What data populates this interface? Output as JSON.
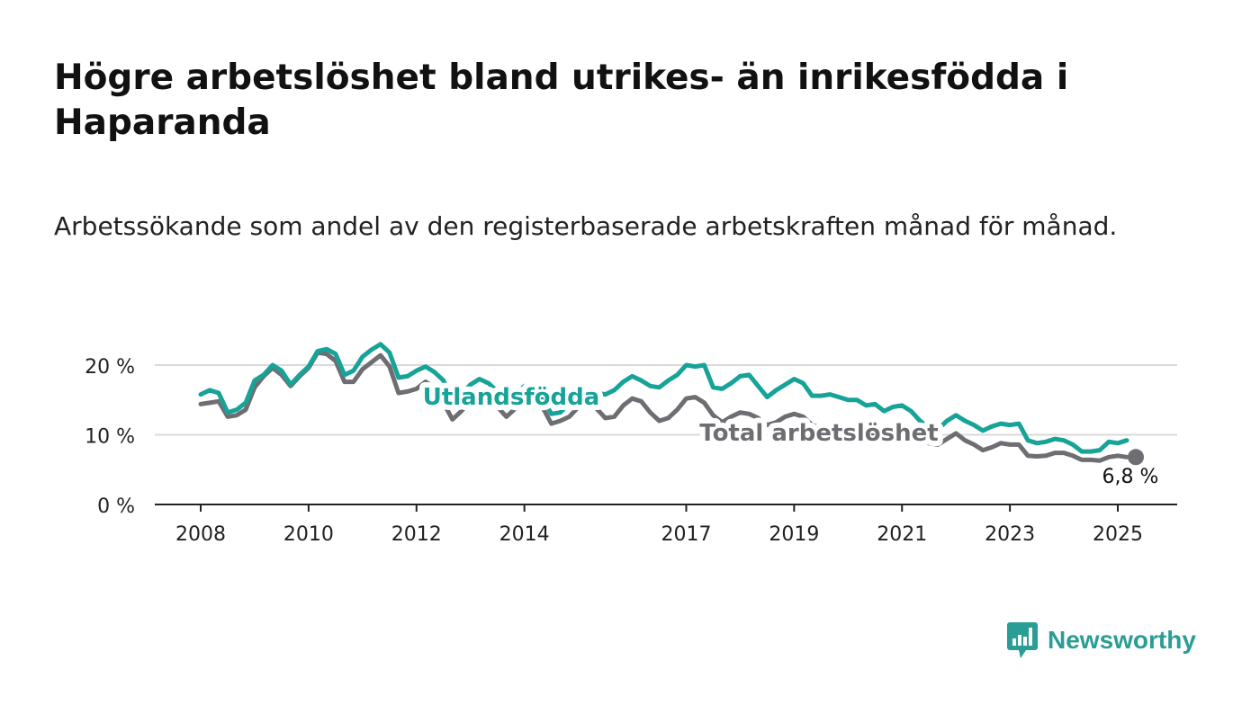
{
  "title": "Högre arbetslöshet bland utrikes- än inrikesfödda i Haparanda",
  "subtitle": "Arbetssökande som andel av den registerbaserade arbetskraften månad för månad.",
  "brand": {
    "name": "Newsworthy",
    "icon": "newsworthy-logo-icon"
  },
  "colors": {
    "foreign": "#17a398",
    "total": "#6e6d72",
    "grid": "#d9d9d9",
    "axis": "#222222",
    "brand": "#2a9d95"
  },
  "chart_data": {
    "type": "line",
    "title": "Högre arbetslöshet bland utrikes- än inrikesfödda i Haparanda",
    "subtitle": "Arbetssökande som andel av den registerbaserade arbetskraften månad för månad.",
    "xlabel": "",
    "ylabel": "",
    "x_ticks": [
      "2008",
      "2010",
      "2012",
      "2014",
      "2017",
      "2019",
      "2021",
      "2023",
      "2025"
    ],
    "y_ticks": [
      "0 %",
      "10 %",
      "20 %"
    ],
    "ylim": [
      0,
      20
    ],
    "grid": "horizontal",
    "series": [
      {
        "name": "Utlandsfödda",
        "label": "Utlandsfödda",
        "points": [
          [
            "2008-01",
            15.8
          ],
          [
            "2008-03",
            16.4
          ],
          [
            "2008-05",
            16.0
          ],
          [
            "2008-07",
            13.2
          ],
          [
            "2008-09",
            13.6
          ],
          [
            "2008-11",
            14.6
          ],
          [
            "2009-01",
            17.8
          ],
          [
            "2009-03",
            18.6
          ],
          [
            "2009-05",
            20.0
          ],
          [
            "2009-07",
            19.2
          ],
          [
            "2009-09",
            17.2
          ],
          [
            "2009-11",
            18.6
          ],
          [
            "2010-01",
            19.8
          ],
          [
            "2010-03",
            22.0
          ],
          [
            "2010-05",
            22.3
          ],
          [
            "2010-07",
            21.6
          ],
          [
            "2010-09",
            18.6
          ],
          [
            "2010-11",
            19.2
          ],
          [
            "2011-01",
            21.2
          ],
          [
            "2011-03",
            22.2
          ],
          [
            "2011-05",
            23.0
          ],
          [
            "2011-07",
            21.8
          ],
          [
            "2011-09",
            18.2
          ],
          [
            "2011-11",
            18.4
          ],
          [
            "2012-01",
            19.2
          ],
          [
            "2012-03",
            19.8
          ],
          [
            "2012-05",
            19.0
          ],
          [
            "2012-07",
            17.8
          ],
          [
            "2012-09",
            14.8
          ],
          [
            "2012-11",
            15.8
          ],
          [
            "2013-01",
            17.2
          ],
          [
            "2013-03",
            18.0
          ],
          [
            "2013-05",
            17.4
          ],
          [
            "2013-07",
            16.2
          ],
          [
            "2013-09",
            14.8
          ],
          [
            "2013-11",
            15.8
          ],
          [
            "2014-01",
            17.0
          ],
          [
            "2014-03",
            16.6
          ],
          [
            "2014-05",
            15.4
          ],
          [
            "2014-07",
            13.0
          ],
          [
            "2014-09",
            13.2
          ],
          [
            "2014-11",
            14.6
          ],
          [
            "2015-01",
            16.6
          ],
          [
            "2015-03",
            16.6
          ],
          [
            "2015-05",
            16.0
          ],
          [
            "2015-07",
            15.8
          ],
          [
            "2015-09",
            16.4
          ],
          [
            "2015-11",
            17.6
          ],
          [
            "2016-01",
            18.4
          ],
          [
            "2016-03",
            17.8
          ],
          [
            "2016-05",
            17.0
          ],
          [
            "2016-07",
            16.8
          ],
          [
            "2016-09",
            17.8
          ],
          [
            "2016-11",
            18.6
          ],
          [
            "2017-01",
            20.0
          ],
          [
            "2017-03",
            19.8
          ],
          [
            "2017-05",
            20.0
          ],
          [
            "2017-07",
            16.8
          ],
          [
            "2017-09",
            16.6
          ],
          [
            "2017-11",
            17.4
          ],
          [
            "2018-01",
            18.4
          ],
          [
            "2018-03",
            18.6
          ],
          [
            "2018-05",
            17.0
          ],
          [
            "2018-07",
            15.4
          ],
          [
            "2018-09",
            16.4
          ],
          [
            "2018-11",
            17.2
          ],
          [
            "2019-01",
            18.0
          ],
          [
            "2019-03",
            17.4
          ],
          [
            "2019-05",
            15.6
          ],
          [
            "2019-07",
            15.6
          ],
          [
            "2019-09",
            15.8
          ],
          [
            "2019-11",
            15.4
          ],
          [
            "2020-01",
            15.0
          ],
          [
            "2020-03",
            15.0
          ],
          [
            "2020-05",
            14.2
          ],
          [
            "2020-07",
            14.4
          ],
          [
            "2020-09",
            13.4
          ],
          [
            "2020-11",
            14.0
          ],
          [
            "2021-01",
            14.2
          ],
          [
            "2021-03",
            13.4
          ],
          [
            "2021-05",
            12.0
          ],
          [
            "2021-07",
            11.0
          ],
          [
            "2021-09",
            10.8
          ],
          [
            "2021-11",
            12.0
          ],
          [
            "2022-01",
            12.8
          ],
          [
            "2022-03",
            12.0
          ],
          [
            "2022-05",
            11.4
          ],
          [
            "2022-07",
            10.6
          ],
          [
            "2022-09",
            11.2
          ],
          [
            "2022-11",
            11.6
          ],
          [
            "2023-01",
            11.4
          ],
          [
            "2023-03",
            11.6
          ],
          [
            "2023-05",
            9.2
          ],
          [
            "2023-07",
            8.8
          ],
          [
            "2023-09",
            9.0
          ],
          [
            "2023-11",
            9.4
          ],
          [
            "2024-01",
            9.2
          ],
          [
            "2024-03",
            8.6
          ],
          [
            "2024-05",
            7.6
          ],
          [
            "2024-07",
            7.6
          ],
          [
            "2024-09",
            7.8
          ],
          [
            "2024-11",
            9.0
          ],
          [
            "2025-01",
            8.8
          ],
          [
            "2025-03",
            9.2
          ]
        ]
      },
      {
        "name": "Total arbetslöshet",
        "label": "Total arbetslöshet",
        "end_label": "6,8 %",
        "points": [
          [
            "2008-01",
            14.4
          ],
          [
            "2008-03",
            14.6
          ],
          [
            "2008-05",
            14.8
          ],
          [
            "2008-07",
            12.6
          ],
          [
            "2008-09",
            12.8
          ],
          [
            "2008-11",
            13.6
          ],
          [
            "2009-01",
            16.8
          ],
          [
            "2009-03",
            18.4
          ],
          [
            "2009-05",
            19.6
          ],
          [
            "2009-07",
            18.6
          ],
          [
            "2009-09",
            17.0
          ],
          [
            "2009-11",
            18.4
          ],
          [
            "2010-01",
            19.6
          ],
          [
            "2010-03",
            21.8
          ],
          [
            "2010-05",
            21.6
          ],
          [
            "2010-07",
            20.6
          ],
          [
            "2010-09",
            17.6
          ],
          [
            "2010-11",
            17.6
          ],
          [
            "2011-01",
            19.4
          ],
          [
            "2011-03",
            20.4
          ],
          [
            "2011-05",
            21.4
          ],
          [
            "2011-07",
            19.8
          ],
          [
            "2011-09",
            16.0
          ],
          [
            "2011-11",
            16.2
          ],
          [
            "2012-01",
            16.6
          ],
          [
            "2012-03",
            17.6
          ],
          [
            "2012-05",
            16.8
          ],
          [
            "2012-07",
            14.6
          ],
          [
            "2012-09",
            12.2
          ],
          [
            "2012-11",
            13.4
          ],
          [
            "2013-01",
            14.8
          ],
          [
            "2013-03",
            15.2
          ],
          [
            "2013-05",
            15.0
          ],
          [
            "2013-07",
            14.0
          ],
          [
            "2013-09",
            12.6
          ],
          [
            "2013-11",
            13.8
          ],
          [
            "2014-01",
            14.4
          ],
          [
            "2014-03",
            14.6
          ],
          [
            "2014-05",
            14.0
          ],
          [
            "2014-07",
            11.6
          ],
          [
            "2014-09",
            12.0
          ],
          [
            "2014-11",
            12.6
          ],
          [
            "2015-01",
            14.0
          ],
          [
            "2015-03",
            15.0
          ],
          [
            "2015-05",
            13.8
          ],
          [
            "2015-07",
            12.4
          ],
          [
            "2015-09",
            12.6
          ],
          [
            "2015-11",
            14.2
          ],
          [
            "2016-01",
            15.2
          ],
          [
            "2016-03",
            14.8
          ],
          [
            "2016-05",
            13.2
          ],
          [
            "2016-07",
            12.0
          ],
          [
            "2016-09",
            12.4
          ],
          [
            "2016-11",
            13.6
          ],
          [
            "2017-01",
            15.2
          ],
          [
            "2017-03",
            15.4
          ],
          [
            "2017-05",
            14.6
          ],
          [
            "2017-07",
            12.8
          ],
          [
            "2017-09",
            11.8
          ],
          [
            "2017-11",
            12.6
          ],
          [
            "2018-01",
            13.2
          ],
          [
            "2018-03",
            13.0
          ],
          [
            "2018-05",
            12.4
          ],
          [
            "2018-07",
            11.4
          ],
          [
            "2018-09",
            11.8
          ],
          [
            "2018-11",
            12.6
          ],
          [
            "2019-01",
            13.0
          ],
          [
            "2019-03",
            12.6
          ],
          [
            "2019-05",
            11.4
          ],
          [
            "2019-07",
            11.0
          ],
          [
            "2019-09",
            11.0
          ],
          [
            "2019-11",
            10.8
          ],
          [
            "2020-01",
            10.6
          ],
          [
            "2020-03",
            10.4
          ],
          [
            "2020-05",
            10.0
          ],
          [
            "2020-07",
            10.0
          ],
          [
            "2020-09",
            9.6
          ],
          [
            "2020-11",
            10.2
          ],
          [
            "2021-01",
            10.4
          ],
          [
            "2021-03",
            9.8
          ],
          [
            "2021-05",
            9.2
          ],
          [
            "2021-07",
            8.8
          ],
          [
            "2021-09",
            8.6
          ],
          [
            "2021-11",
            9.4
          ],
          [
            "2022-01",
            10.2
          ],
          [
            "2022-03",
            9.2
          ],
          [
            "2022-05",
            8.6
          ],
          [
            "2022-07",
            7.8
          ],
          [
            "2022-09",
            8.2
          ],
          [
            "2022-11",
            8.8
          ],
          [
            "2023-01",
            8.6
          ],
          [
            "2023-03",
            8.6
          ],
          [
            "2023-05",
            7.0
          ],
          [
            "2023-07",
            6.9
          ],
          [
            "2023-09",
            7.0
          ],
          [
            "2023-11",
            7.4
          ],
          [
            "2024-01",
            7.4
          ],
          [
            "2024-03",
            7.0
          ],
          [
            "2024-05",
            6.4
          ],
          [
            "2024-07",
            6.4
          ],
          [
            "2024-09",
            6.3
          ],
          [
            "2024-11",
            6.8
          ],
          [
            "2025-01",
            7.0
          ],
          [
            "2025-03",
            6.8
          ]
        ]
      }
    ]
  }
}
